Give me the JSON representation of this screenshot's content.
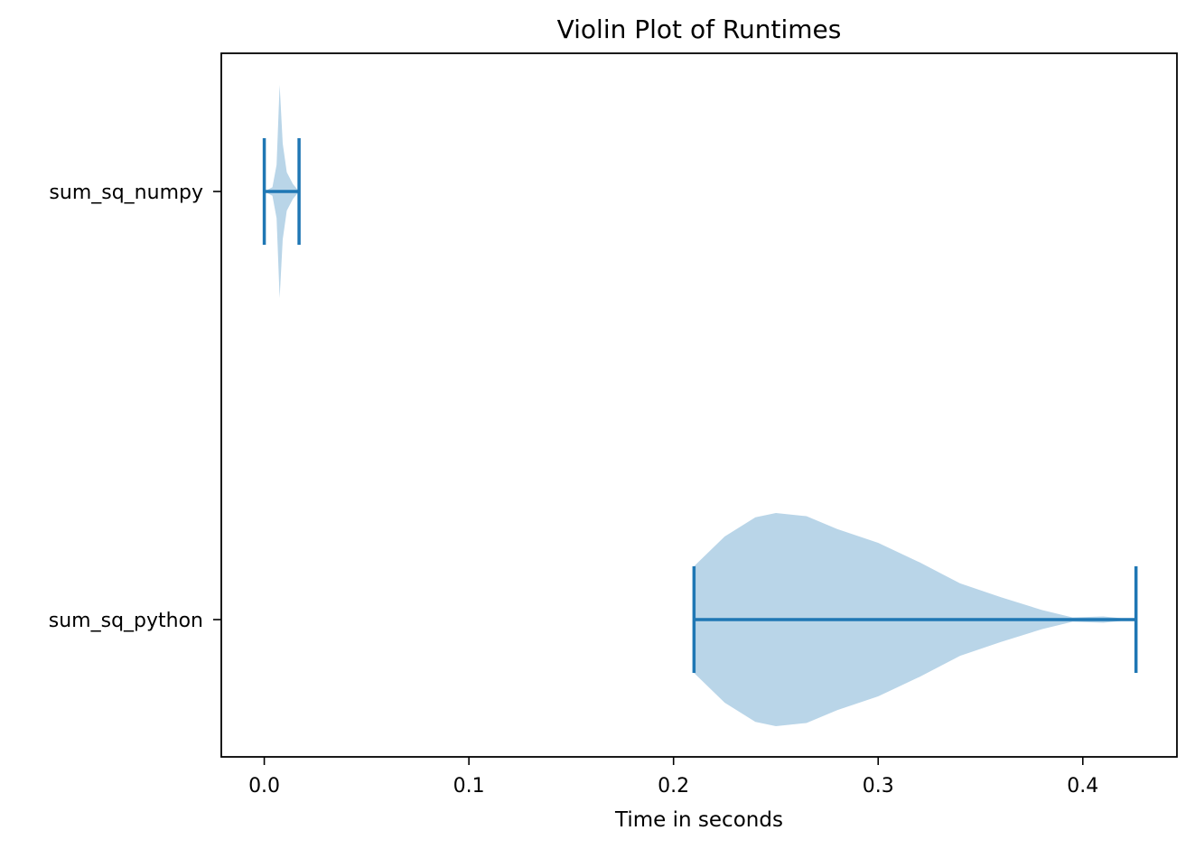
{
  "chart_data": {
    "type": "violin",
    "orientation": "horizontal",
    "title": "Violin Plot of Runtimes",
    "xlabel": "Time in seconds",
    "ylabel": "",
    "xlim": [
      -0.021,
      0.446
    ],
    "xticks": [
      0.0,
      0.1,
      0.2,
      0.3,
      0.4
    ],
    "xtick_labels": [
      "0.0",
      "0.1",
      "0.2",
      "0.3",
      "0.4"
    ],
    "grid": false,
    "series": [
      {
        "name": "sum_sq_numpy",
        "min": 0.0,
        "max": 0.017,
        "median": 0.007,
        "density_profile": [
          [
            0.0,
            0.0
          ],
          [
            0.004,
            0.04
          ],
          [
            0.006,
            0.25
          ],
          [
            0.0075,
            1.0
          ],
          [
            0.009,
            0.45
          ],
          [
            0.011,
            0.18
          ],
          [
            0.014,
            0.07
          ],
          [
            0.017,
            0.0
          ]
        ]
      },
      {
        "name": "sum_sq_python",
        "min": 0.21,
        "max": 0.426,
        "median": 0.25,
        "density_profile": [
          [
            0.21,
            0.5
          ],
          [
            0.225,
            0.78
          ],
          [
            0.24,
            0.96
          ],
          [
            0.25,
            1.0
          ],
          [
            0.265,
            0.97
          ],
          [
            0.28,
            0.85
          ],
          [
            0.3,
            0.72
          ],
          [
            0.32,
            0.54
          ],
          [
            0.34,
            0.34
          ],
          [
            0.36,
            0.21
          ],
          [
            0.38,
            0.09
          ],
          [
            0.395,
            0.02
          ],
          [
            0.41,
            0.03
          ],
          [
            0.42,
            0.01
          ],
          [
            0.426,
            0.0
          ]
        ]
      }
    ],
    "colors": {
      "body_fill": "#b9d5e8",
      "line": "#1f77b4",
      "axis": "#000000"
    }
  }
}
